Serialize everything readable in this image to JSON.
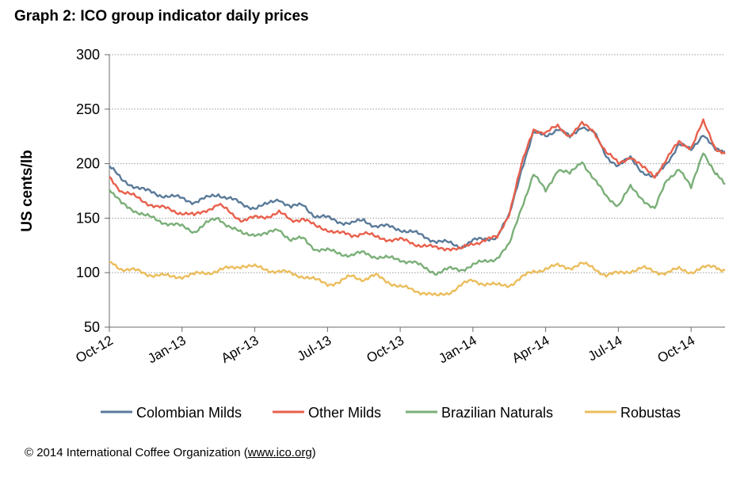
{
  "title": "Graph 2: ICO group indicator daily prices",
  "copyright": {
    "prefix": "© 2014 International Coffee Organization (",
    "link": "www.ico.org",
    "suffix": ")"
  },
  "chart_data": {
    "type": "line",
    "title": "Graph 2: ICO group indicator daily prices",
    "xlabel": "",
    "ylabel": "US cents/lb",
    "ylim": [
      50,
      300
    ],
    "yticks": [
      50,
      100,
      150,
      200,
      250,
      300
    ],
    "xlim": [
      0,
      25.4
    ],
    "x_unit": "months since Oct-2012",
    "xticks": [
      {
        "x": 0,
        "label": "Oct-12"
      },
      {
        "x": 3,
        "label": "Jan-13"
      },
      {
        "x": 6,
        "label": "Apr-13"
      },
      {
        "x": 9,
        "label": "Jul-13"
      },
      {
        "x": 12,
        "label": "Oct-13"
      },
      {
        "x": 15,
        "label": "Jan-14"
      },
      {
        "x": 18,
        "label": "Apr-14"
      },
      {
        "x": 21,
        "label": "Jul-14"
      },
      {
        "x": 24,
        "label": "Oct-14"
      }
    ],
    "grid": true,
    "legend": "bottom",
    "x": [
      0,
      0.5,
      1,
      1.5,
      2,
      2.5,
      3,
      3.5,
      4,
      4.5,
      5,
      5.5,
      6,
      6.5,
      7,
      7.5,
      8,
      8.5,
      9,
      9.5,
      10,
      10.5,
      11,
      11.5,
      12,
      12.5,
      13,
      13.5,
      14,
      14.5,
      15,
      15.5,
      16,
      16.5,
      17,
      17.5,
      18,
      18.5,
      19,
      19.5,
      20,
      20.5,
      21,
      21.5,
      22,
      22.5,
      23,
      23.5,
      24,
      24.5,
      25,
      25.4
    ],
    "series": [
      {
        "name": "Colombian Milds",
        "color": "#5a7a99",
        "values": [
          198,
          185,
          180,
          175,
          172,
          170,
          168,
          165,
          168,
          172,
          168,
          162,
          160,
          162,
          168,
          160,
          162,
          152,
          150,
          147,
          145,
          148,
          143,
          142,
          140,
          137,
          133,
          129,
          127,
          124,
          129,
          131,
          133,
          152,
          195,
          228,
          226,
          232,
          224,
          235,
          228,
          207,
          198,
          205,
          193,
          186,
          201,
          218,
          212,
          228,
          212,
          211
        ]
      },
      {
        "name": "Other Milds",
        "color": "#e8604c",
        "values": [
          188,
          175,
          170,
          165,
          160,
          158,
          155,
          152,
          158,
          162,
          155,
          148,
          150,
          152,
          155,
          148,
          150,
          142,
          140,
          136,
          134,
          137,
          132,
          131,
          130,
          127,
          125,
          122,
          123,
          121,
          127,
          130,
          132,
          155,
          198,
          232,
          228,
          234,
          226,
          236,
          230,
          210,
          200,
          207,
          196,
          189,
          204,
          220,
          215,
          238,
          215,
          209
        ]
      },
      {
        "name": "Brazilian Naturals",
        "color": "#7aaf78",
        "values": [
          176,
          163,
          158,
          152,
          148,
          145,
          142,
          138,
          145,
          150,
          142,
          135,
          136,
          135,
          140,
          130,
          131,
          122,
          120,
          118,
          116,
          118,
          115,
          113,
          112,
          110,
          104,
          100,
          103,
          103,
          107,
          110,
          114,
          125,
          160,
          190,
          175,
          195,
          190,
          203,
          185,
          170,
          162,
          178,
          168,
          158,
          185,
          196,
          177,
          212,
          190,
          181
        ]
      },
      {
        "name": "Robustas",
        "color": "#ebbd5c",
        "values": [
          110,
          104,
          102,
          99,
          98,
          96,
          97,
          98,
          100,
          102,
          104,
          107,
          105,
          103,
          101,
          99,
          97,
          93,
          90,
          91,
          97,
          94,
          97,
          92,
          87,
          84,
          82,
          78,
          82,
          88,
          93,
          90,
          88,
          89,
          95,
          101,
          104,
          106,
          105,
          108,
          104,
          98,
          99,
          102,
          104,
          101,
          100,
          103,
          101,
          104,
          106,
          102
        ]
      }
    ]
  }
}
